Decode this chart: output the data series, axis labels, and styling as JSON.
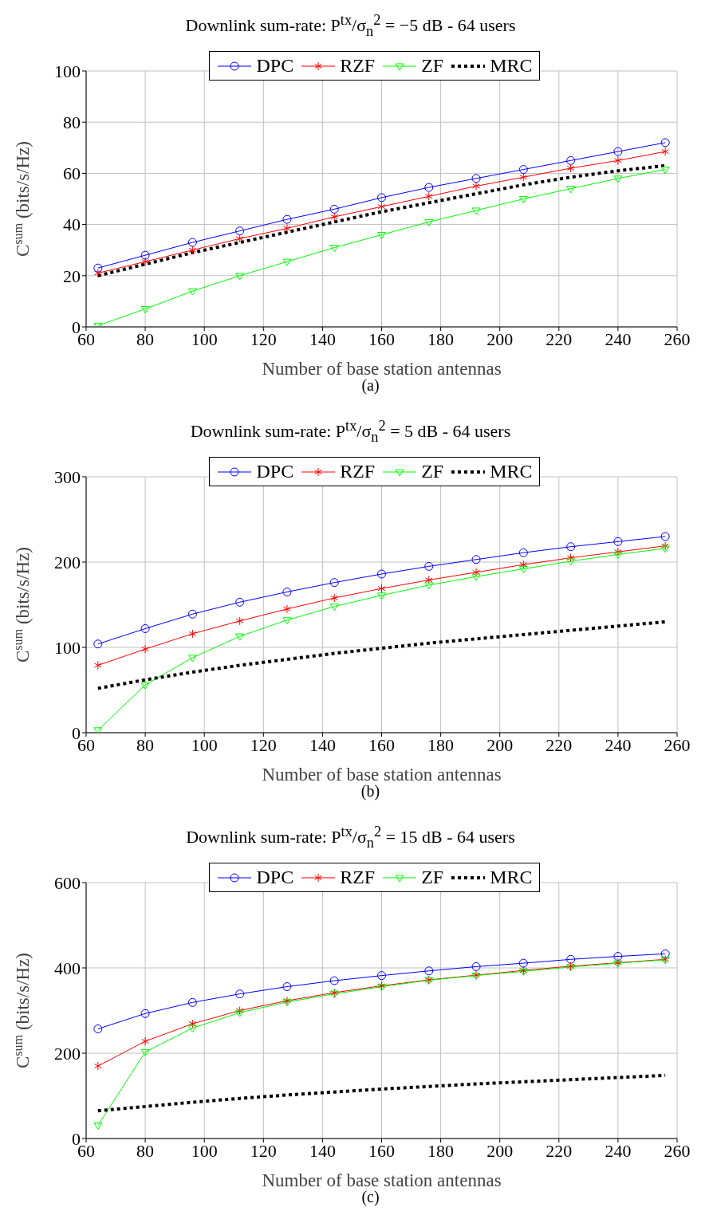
{
  "chart_data": [
    {
      "type": "line",
      "title": "Downlink sum-rate: P$^{tx}$/σ$_{n}$$^{2}$ = −5 dB - 64 users",
      "xlabel": "Number of base station antennas",
      "ylabel": "C$^{sum}$ (bits/s/Hz)",
      "annotations": [
        "(a)"
      ],
      "x": [
        64,
        80,
        96,
        112,
        128,
        144,
        160,
        176,
        192,
        208,
        224,
        240,
        256
      ],
      "xlim": [
        60,
        260
      ],
      "xticks": [
        60,
        80,
        100,
        120,
        140,
        160,
        180,
        200,
        220,
        240,
        260
      ],
      "ylim": [
        0,
        100
      ],
      "yticks": [
        0,
        20,
        40,
        60,
        80,
        100
      ],
      "grid": true,
      "legend": "top",
      "series": [
        {
          "name": "DPC",
          "color": "#0000ff",
          "marker": "circle",
          "values": [
            23,
            28,
            33,
            37.5,
            42,
            46,
            50.5,
            54.5,
            58,
            61.5,
            65,
            68.5,
            72
          ]
        },
        {
          "name": "RZF",
          "color": "#ff0000",
          "marker": "cross",
          "values": [
            21,
            25.5,
            30,
            34.5,
            38.5,
            43,
            47,
            51,
            55,
            58.5,
            62,
            65,
            68.5
          ]
        },
        {
          "name": "ZF",
          "color": "#00ff00",
          "marker": "triangle",
          "values": [
            0.5,
            7,
            14,
            20,
            25.5,
            31,
            36,
            41,
            45.5,
            50,
            54,
            58,
            61.5
          ]
        },
        {
          "name": "MRC",
          "color": "#000000",
          "marker": "none",
          "line_style": "dotted",
          "values": [
            20,
            24.5,
            29,
            33,
            37,
            41,
            45,
            48.5,
            52,
            55.5,
            58.5,
            61,
            63
          ]
        }
      ]
    },
    {
      "type": "line",
      "title": "Downlink sum-rate: P$^{tx}$/σ$_{n}$$^{2}$ = 5 dB - 64 users",
      "xlabel": "Number of base station antennas",
      "ylabel": "C$^{sum}$ (bits/s/Hz)",
      "annotations": [
        "(b)"
      ],
      "x": [
        64,
        80,
        96,
        112,
        128,
        144,
        160,
        176,
        192,
        208,
        224,
        240,
        256
      ],
      "xlim": [
        60,
        260
      ],
      "xticks": [
        60,
        80,
        100,
        120,
        140,
        160,
        180,
        200,
        220,
        240,
        260
      ],
      "ylim": [
        0,
        300
      ],
      "yticks": [
        0,
        100,
        200,
        300
      ],
      "grid": true,
      "legend": "top",
      "series": [
        {
          "name": "DPC",
          "color": "#0000ff",
          "marker": "circle",
          "values": [
            104,
            122,
            139,
            153,
            165,
            176,
            186,
            195,
            203,
            211,
            218,
            224,
            230
          ]
        },
        {
          "name": "RZF",
          "color": "#ff0000",
          "marker": "cross",
          "values": [
            79,
            98,
            116,
            131,
            145,
            158,
            169,
            179,
            188,
            197,
            205,
            212,
            219
          ]
        },
        {
          "name": "ZF",
          "color": "#00ff00",
          "marker": "triangle",
          "values": [
            3,
            56,
            88,
            113,
            132,
            148,
            161,
            173,
            183,
            192,
            201,
            209,
            216
          ]
        },
        {
          "name": "MRC",
          "color": "#000000",
          "marker": "none",
          "line_style": "dotted",
          "values": [
            52,
            62,
            71,
            79,
            86,
            93,
            99,
            105,
            110,
            115,
            120,
            125,
            130
          ]
        }
      ]
    },
    {
      "type": "line",
      "title": "Downlink sum-rate: P$^{tx}$/σ$_{n}$$^{2}$ = 15 dB - 64 users",
      "xlabel": "Number of base station antennas",
      "ylabel": "C$^{sum}$ (bits/s/Hz)",
      "annotations": [
        "(c)"
      ],
      "x": [
        64,
        80,
        96,
        112,
        128,
        144,
        160,
        176,
        192,
        208,
        224,
        240,
        256
      ],
      "xlim": [
        60,
        260
      ],
      "xticks": [
        60,
        80,
        100,
        120,
        140,
        160,
        180,
        200,
        220,
        240,
        260
      ],
      "ylim": [
        0,
        600
      ],
      "yticks": [
        0,
        200,
        400,
        600
      ],
      "grid": true,
      "legend": "top",
      "series": [
        {
          "name": "DPC",
          "color": "#0000ff",
          "marker": "circle",
          "values": [
            257,
            293,
            319,
            339,
            356,
            370,
            382,
            393,
            403,
            411,
            420,
            427,
            433
          ]
        },
        {
          "name": "RZF",
          "color": "#ff0000",
          "marker": "cross",
          "values": [
            170,
            228,
            269,
            300,
            323,
            342,
            358,
            372,
            383,
            394,
            404,
            412,
            420
          ]
        },
        {
          "name": "ZF",
          "color": "#00ff00",
          "marker": "triangle",
          "values": [
            31,
            203,
            259,
            295,
            320,
            339,
            356,
            371,
            382,
            392,
            402,
            411,
            419
          ]
        },
        {
          "name": "MRC",
          "color": "#000000",
          "marker": "none",
          "line_style": "dotted",
          "values": [
            65,
            75,
            85,
            94,
            102,
            109,
            116,
            122,
            128,
            133,
            138,
            143,
            148
          ]
        }
      ]
    }
  ]
}
